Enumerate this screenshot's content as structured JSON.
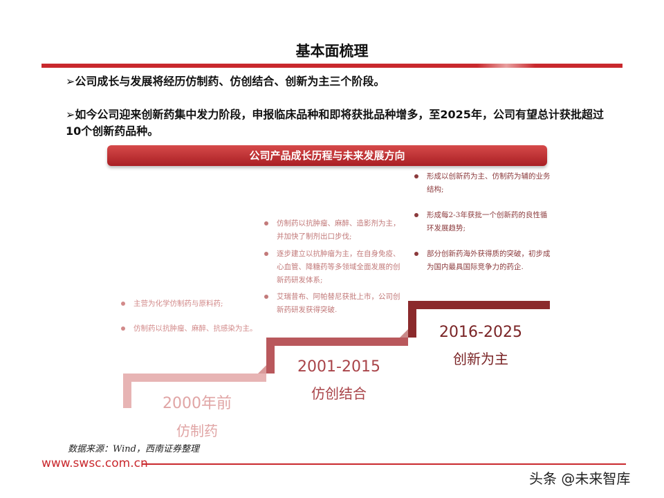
{
  "title": "基本面梳理",
  "bullets": [
    "➢公司成长与发展将经历仿制药、仿创结合、创新为主三个阶段。",
    "➢如今公司迎来创新药集中发力阶段，申报临床品种和即将获批品种增多，至2025年，公司有望总计获批超过10个创新药品种。"
  ],
  "banner": "公司产品成长历程与未来发展方向",
  "stages": [
    {
      "years": "2000年前",
      "label": "仿制药",
      "color": "#e7b4b4",
      "notes": [
        "主营为化学仿制药与原料药;",
        "仿制药以抗肿瘤、麻醉、抗感染为主。"
      ]
    },
    {
      "years": "2001-2015",
      "label": "仿创结合",
      "color": "#b9585c",
      "notes": [
        "仿制药以抗肿瘤、麻醉、造影剂为主，并加快了制剂出口步伐;",
        "逐步建立以抗肿瘤为主，在自身免疫、心血管、降糖药等多领域全面发展的创新药研发体系;",
        "艾瑞昔布、阿帕替尼获批上市，公司创新药研发获得突破."
      ]
    },
    {
      "years": "2016-2025",
      "label": "创新为主",
      "color": "#8b2a2c",
      "notes": [
        "形成以创新药为主、仿制药为辅的业务结构;",
        "形成每2-3年获批一个创新药的良性循环发展趋势;",
        "部分创新药海外获得质的突破，初步成为国内最具国际竞争力的药企."
      ]
    }
  ],
  "source": "数据来源：Wind，西南证券整理",
  "site": "www.swsc.com.cn",
  "watermark": "头条 @未来智库"
}
